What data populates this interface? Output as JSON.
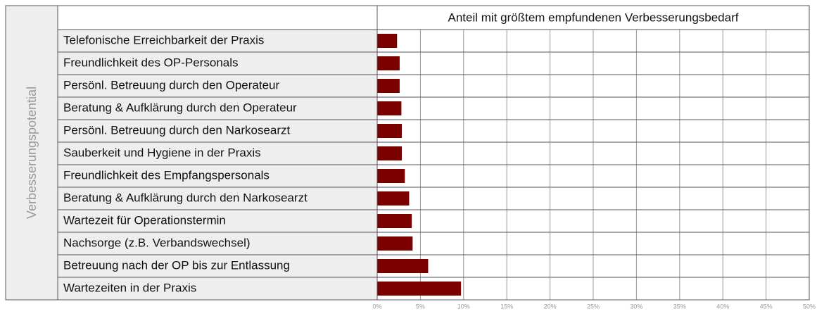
{
  "chart_data": {
    "type": "bar",
    "orientation": "horizontal",
    "title": "Anteil mit größtem empfundenen Verbesserungsbedarf",
    "ylabel": "Verbesserungspotential",
    "categories": [
      "Telefonische Erreichbarkeit der Praxis",
      "Freundlichkeit des OP-Personals",
      "Persönl. Betreuung durch den Operateur",
      "Beratung & Aufklärung durch den Operateur",
      "Persönl. Betreuung durch den Narkosearzt",
      "Sauberkeit und Hygiene in der Praxis",
      "Freundlichkeit des Empfangspersonals",
      "Beratung & Aufklärung durch den Narkosearzt",
      "Wartezeit für Operationstermin",
      "Nachsorge (z.B. Verbandswechsel)",
      "Betreuung nach der OP bis zur Entlassung",
      "Wartezeiten in der Praxis"
    ],
    "values": [
      2.3,
      2.6,
      2.6,
      2.8,
      2.85,
      2.85,
      3.2,
      3.7,
      4.0,
      4.1,
      5.9,
      9.7
    ],
    "color": "#7b0000",
    "xlim": [
      0,
      50
    ],
    "xticks": [
      {
        "value": 0,
        "label": "0%"
      },
      {
        "value": 5,
        "label": "5%"
      },
      {
        "value": 10,
        "label": "10%"
      },
      {
        "value": 15,
        "label": "15%"
      },
      {
        "value": 20,
        "label": "20%"
      },
      {
        "value": 25,
        "label": "25%"
      },
      {
        "value": 30,
        "label": "30%"
      },
      {
        "value": 35,
        "label": "35%"
      },
      {
        "value": 40,
        "label": "40%"
      },
      {
        "value": 45,
        "label": "45%"
      },
      {
        "value": 50,
        "label": "50%"
      }
    ],
    "grid": true
  }
}
